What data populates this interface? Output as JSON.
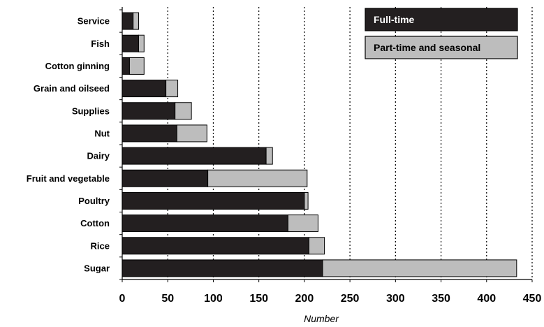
{
  "chart_data": {
    "type": "bar",
    "orientation": "horizontal",
    "stacked": true,
    "categories": [
      "Service",
      "Fish",
      "Cotton ginning",
      "Grain and oilseed",
      "Supplies",
      "Nut",
      "Dairy",
      "Fruit and vegetable",
      "Poultry",
      "Cotton",
      "Rice",
      "Sugar"
    ],
    "series": [
      {
        "name": "Full-time",
        "values": [
          12,
          18,
          8,
          48,
          58,
          60,
          158,
          94,
          200,
          182,
          205,
          220
        ],
        "color": "#231f20"
      },
      {
        "name": "Part-time and seasonal",
        "values": [
          6,
          6,
          16,
          13,
          18,
          33,
          7,
          109,
          4,
          33,
          17,
          213
        ],
        "color": "#bdbdbd"
      }
    ],
    "xlabel": "Number",
    "xlim": [
      0,
      450
    ],
    "xticks": [
      "0",
      "50",
      "100",
      "150",
      "200",
      "250",
      "300",
      "350",
      "400",
      "450"
    ],
    "grid": "vertical dotted",
    "legend_position": "top-right"
  }
}
